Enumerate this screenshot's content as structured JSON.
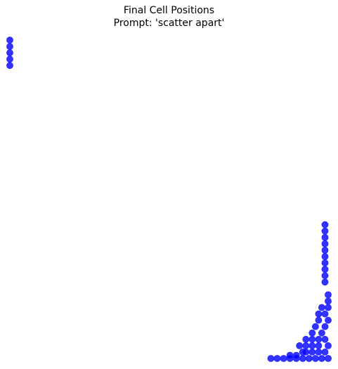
{
  "chart_data": {
    "type": "scatter",
    "title": "Final Cell Positions",
    "subtitle": "Prompt: 'scatter apart'",
    "xlabel": "",
    "ylabel": "",
    "axes_visible": false,
    "grid": false,
    "xlim": [
      0,
      100
    ],
    "ylim": [
      0,
      100
    ],
    "marker_color": "#0000ff",
    "marker_opacity": 0.8,
    "points": [
      {
        "x": 0,
        "y": 100
      },
      {
        "x": 0,
        "y": 98
      },
      {
        "x": 0,
        "y": 96
      },
      {
        "x": 0,
        "y": 94
      },
      {
        "x": 0,
        "y": 92
      },
      {
        "x": 82,
        "y": 0
      },
      {
        "x": 84,
        "y": 0
      },
      {
        "x": 86,
        "y": 0
      },
      {
        "x": 88,
        "y": 0
      },
      {
        "x": 90,
        "y": 0
      },
      {
        "x": 92,
        "y": 0
      },
      {
        "x": 94,
        "y": 0
      },
      {
        "x": 96,
        "y": 0
      },
      {
        "x": 98,
        "y": 0
      },
      {
        "x": 100,
        "y": 0
      },
      {
        "x": 88,
        "y": 1
      },
      {
        "x": 90,
        "y": 1
      },
      {
        "x": 92,
        "y": 2
      },
      {
        "x": 93,
        "y": 2
      },
      {
        "x": 95,
        "y": 2
      },
      {
        "x": 97,
        "y": 2
      },
      {
        "x": 99,
        "y": 2
      },
      {
        "x": 91,
        "y": 4
      },
      {
        "x": 93,
        "y": 4
      },
      {
        "x": 95,
        "y": 4
      },
      {
        "x": 97,
        "y": 4
      },
      {
        "x": 100,
        "y": 4
      },
      {
        "x": 93,
        "y": 6
      },
      {
        "x": 95,
        "y": 6
      },
      {
        "x": 97,
        "y": 6
      },
      {
        "x": 99,
        "y": 6
      },
      {
        "x": 95,
        "y": 8
      },
      {
        "x": 98,
        "y": 8
      },
      {
        "x": 96,
        "y": 10
      },
      {
        "x": 99,
        "y": 10
      },
      {
        "x": 97,
        "y": 12
      },
      {
        "x": 100,
        "y": 12
      },
      {
        "x": 97,
        "y": 14
      },
      {
        "x": 99,
        "y": 14
      },
      {
        "x": 98,
        "y": 16
      },
      {
        "x": 100,
        "y": 16
      },
      {
        "x": 100,
        "y": 18
      },
      {
        "x": 100,
        "y": 20
      },
      {
        "x": 99,
        "y": 24
      },
      {
        "x": 99,
        "y": 26
      },
      {
        "x": 99,
        "y": 28
      },
      {
        "x": 99,
        "y": 30
      },
      {
        "x": 99,
        "y": 32
      },
      {
        "x": 99,
        "y": 34
      },
      {
        "x": 99,
        "y": 36
      },
      {
        "x": 99,
        "y": 38
      },
      {
        "x": 99,
        "y": 40
      },
      {
        "x": 99,
        "y": 42
      }
    ]
  }
}
